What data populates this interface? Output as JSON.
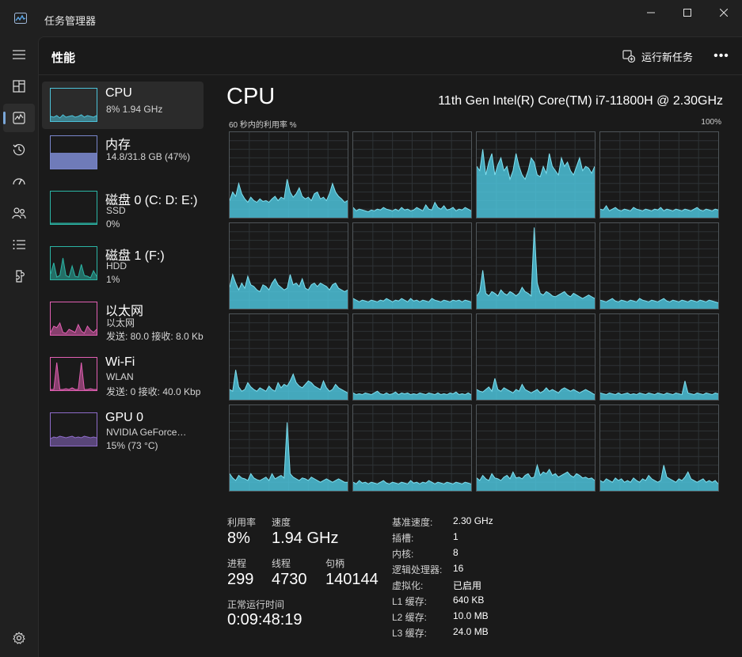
{
  "window": {
    "title": "任务管理器",
    "minimize_icon": "minimize-icon",
    "maximize_icon": "maximize-icon",
    "close_icon": "close-icon"
  },
  "nav": {
    "items": [
      {
        "icon": "hamburger-menu-icon"
      },
      {
        "icon": "processes-icon"
      },
      {
        "icon": "performance-icon",
        "active": true
      },
      {
        "icon": "app-history-icon"
      },
      {
        "icon": "startup-apps-icon"
      },
      {
        "icon": "users-icon"
      },
      {
        "icon": "details-icon"
      },
      {
        "icon": "services-icon"
      }
    ],
    "settings_icon": "settings-icon"
  },
  "header": {
    "title": "性能",
    "run_new_task": "运行新任务",
    "more": "•••"
  },
  "resources": [
    {
      "name": "CPU",
      "line1": "8% 1.94 GHz",
      "line2": "",
      "line3": "",
      "color": "#4cc2d9",
      "selected": true
    },
    {
      "name": "内存",
      "line1": "14.8/31.8 GB (47%)",
      "line2": "",
      "line3": "",
      "color": "#7986cb"
    },
    {
      "name": "磁盘 0 (C: D: E:)",
      "line1": "SSD",
      "line2": "0%",
      "line3": "",
      "color": "#2bb5a5"
    },
    {
      "name": "磁盘 1 (F:)",
      "line1": "HDD",
      "line2": "1%",
      "line3": "",
      "color": "#2bb5a5"
    },
    {
      "name": "以太网",
      "line1": "以太网",
      "line2": "发送: 80.0 接收: 8.0 Kb",
      "line3": "",
      "color": "#e25fb3"
    },
    {
      "name": "Wi-Fi",
      "line1": "WLAN",
      "line2": "发送: 0 接收: 40.0 Kbp",
      "line3": "",
      "color": "#e25fb3"
    },
    {
      "name": "GPU 0",
      "line1": "NVIDIA GeForce…",
      "line2": "15% (73 °C)",
      "line3": "",
      "color": "#8e6cc9"
    }
  ],
  "cpu": {
    "title": "CPU",
    "model": "11th Gen Intel(R) Core(TM) i7-11800H @ 2.30GHz",
    "graph_caption": "60 秒内的利用率 %",
    "graph_max": "100%",
    "accent": "#4cc2d9",
    "stats": {
      "utilization_label": "利用率",
      "utilization_value": "8%",
      "speed_label": "速度",
      "speed_value": "1.94 GHz",
      "processes_label": "进程",
      "processes_value": "299",
      "threads_label": "线程",
      "threads_value": "4730",
      "handles_label": "句柄",
      "handles_value": "140144",
      "uptime_label": "正常运行时间",
      "uptime_value": "0:09:48:19"
    },
    "details": [
      {
        "label": "基准速度:",
        "value": "2.30 GHz"
      },
      {
        "label": "插槽:",
        "value": "1"
      },
      {
        "label": "内核:",
        "value": "8"
      },
      {
        "label": "逻辑处理器:",
        "value": "16"
      },
      {
        "label": "虚拟化:",
        "value": "已启用"
      },
      {
        "label": "L1 缓存:",
        "value": "640 KB"
      },
      {
        "label": "L2 缓存:",
        "value": "10.0 MB"
      },
      {
        "label": "L3 缓存:",
        "value": "24.0 MB"
      }
    ]
  },
  "chart_data": {
    "type": "area",
    "title": "60 秒内的利用率 %",
    "ylim": [
      0,
      100
    ],
    "grid": true,
    "series": [
      {
        "values": [
          20,
          30,
          25,
          40,
          28,
          22,
          18,
          24,
          20,
          18,
          22,
          19,
          20,
          18,
          22,
          25,
          20,
          24,
          22,
          45,
          30,
          24,
          28,
          35,
          25,
          22,
          24,
          20,
          28,
          30,
          22,
          24,
          20,
          28,
          40,
          30,
          25,
          22,
          18,
          20
        ]
      },
      {
        "values": [
          12,
          8,
          10,
          9,
          8,
          7,
          9,
          8,
          10,
          9,
          12,
          10,
          9,
          8,
          10,
          8,
          12,
          9,
          10,
          8,
          9,
          12,
          10,
          8,
          15,
          10,
          9,
          18,
          12,
          10,
          14,
          9,
          10,
          12,
          8,
          10,
          9,
          12,
          10,
          8
        ]
      },
      {
        "values": [
          60,
          55,
          80,
          50,
          65,
          75,
          50,
          62,
          70,
          55,
          60,
          45,
          55,
          75,
          60,
          50,
          45,
          55,
          70,
          65,
          50,
          48,
          60,
          52,
          75,
          60,
          55,
          50,
          70,
          60,
          65,
          55,
          50,
          60,
          70,
          55,
          60,
          58,
          52,
          60
        ]
      },
      {
        "values": [
          10,
          9,
          14,
          8,
          10,
          12,
          9,
          8,
          10,
          9,
          8,
          12,
          10,
          9,
          8,
          10,
          9,
          8,
          10,
          9,
          12,
          8,
          10,
          9,
          8,
          10,
          9,
          8,
          10,
          9,
          8,
          10,
          12,
          9,
          8,
          10,
          9,
          8,
          10,
          9
        ]
      },
      {
        "values": [
          25,
          40,
          30,
          22,
          30,
          24,
          38,
          28,
          26,
          22,
          20,
          28,
          26,
          22,
          30,
          35,
          28,
          25,
          22,
          24,
          40,
          28,
          30,
          26,
          35,
          24,
          22,
          28,
          30,
          26,
          30,
          28,
          26,
          22,
          28,
          30,
          24,
          22,
          20,
          22
        ]
      },
      {
        "values": [
          12,
          10,
          8,
          10,
          9,
          8,
          10,
          9,
          8,
          10,
          9,
          12,
          10,
          8,
          10,
          9,
          12,
          10,
          8,
          12,
          9,
          10,
          8,
          10,
          9,
          8,
          12,
          10,
          9,
          8,
          10,
          9,
          8,
          10,
          9,
          10,
          8,
          10,
          9,
          8
        ]
      },
      {
        "values": [
          15,
          20,
          45,
          18,
          15,
          20,
          18,
          15,
          22,
          18,
          16,
          20,
          18,
          15,
          18,
          25,
          20,
          18,
          15,
          95,
          30,
          18,
          16,
          20,
          18,
          15,
          14,
          16,
          18,
          20,
          16,
          14,
          18,
          16,
          14,
          12,
          14,
          16,
          14,
          12
        ]
      },
      {
        "values": [
          10,
          9,
          8,
          10,
          12,
          9,
          8,
          10,
          9,
          8,
          10,
          9,
          8,
          12,
          10,
          9,
          8,
          10,
          9,
          8,
          10,
          12,
          9,
          8,
          10,
          9,
          8,
          10,
          9,
          8,
          10,
          9,
          8,
          10,
          9,
          8,
          10,
          9,
          8,
          7
        ]
      },
      {
        "values": [
          12,
          10,
          35,
          15,
          10,
          12,
          20,
          15,
          12,
          10,
          14,
          12,
          10,
          16,
          12,
          10,
          20,
          14,
          18,
          16,
          22,
          30,
          20,
          16,
          14,
          18,
          22,
          20,
          16,
          14,
          12,
          22,
          14,
          10,
          12,
          18,
          14,
          12,
          10,
          8
        ]
      },
      {
        "values": [
          8,
          6,
          7,
          6,
          8,
          7,
          6,
          8,
          10,
          7,
          6,
          8,
          6,
          7,
          9,
          6,
          8,
          7,
          8,
          6,
          7,
          6,
          8,
          7,
          6,
          8,
          7,
          6,
          8,
          6,
          7,
          6,
          8,
          7,
          9,
          6,
          7,
          6,
          8,
          6
        ]
      },
      {
        "values": [
          12,
          10,
          9,
          12,
          15,
          10,
          25,
          12,
          10,
          14,
          12,
          10,
          8,
          12,
          10,
          18,
          12,
          10,
          8,
          10,
          12,
          8,
          10,
          14,
          10,
          12,
          10,
          8,
          12,
          14,
          12,
          10,
          12,
          10,
          8,
          10,
          12,
          10,
          8,
          6
        ]
      },
      {
        "values": [
          8,
          7,
          6,
          8,
          7,
          6,
          8,
          6,
          7,
          8,
          6,
          7,
          6,
          8,
          7,
          6,
          8,
          7,
          6,
          8,
          7,
          6,
          8,
          7,
          6,
          8,
          7,
          6,
          22,
          8,
          7,
          6,
          8,
          7,
          6,
          8,
          7,
          6,
          8,
          7
        ]
      },
      {
        "values": [
          20,
          15,
          12,
          18,
          15,
          14,
          12,
          20,
          15,
          13,
          12,
          14,
          16,
          12,
          20,
          14,
          16,
          18,
          15,
          80,
          20,
          16,
          14,
          12,
          15,
          14,
          12,
          16,
          14,
          12,
          10,
          12,
          14,
          12,
          10,
          12,
          14,
          12,
          10,
          10
        ]
      },
      {
        "values": [
          10,
          8,
          12,
          9,
          10,
          8,
          10,
          9,
          8,
          10,
          12,
          9,
          8,
          10,
          9,
          8,
          10,
          9,
          8,
          12,
          9,
          10,
          8,
          10,
          9,
          12,
          10,
          8,
          10,
          9,
          8,
          10,
          9,
          8,
          10,
          9,
          8,
          10,
          9,
          8
        ]
      },
      {
        "values": [
          15,
          12,
          18,
          14,
          12,
          20,
          15,
          14,
          12,
          16,
          18,
          14,
          22,
          15,
          16,
          14,
          18,
          20,
          15,
          16,
          30,
          18,
          22,
          20,
          25,
          18,
          20,
          16,
          18,
          20,
          22,
          18,
          16,
          20,
          18,
          15,
          16,
          14,
          15,
          12
        ]
      },
      {
        "values": [
          12,
          10,
          14,
          12,
          10,
          15,
          12,
          14,
          10,
          12,
          10,
          15,
          12,
          10,
          14,
          12,
          18,
          14,
          12,
          10,
          12,
          30,
          16,
          14,
          12,
          10,
          14,
          12,
          16,
          22,
          14,
          12,
          10,
          12,
          14,
          10,
          12,
          10,
          12,
          8
        ]
      }
    ]
  }
}
